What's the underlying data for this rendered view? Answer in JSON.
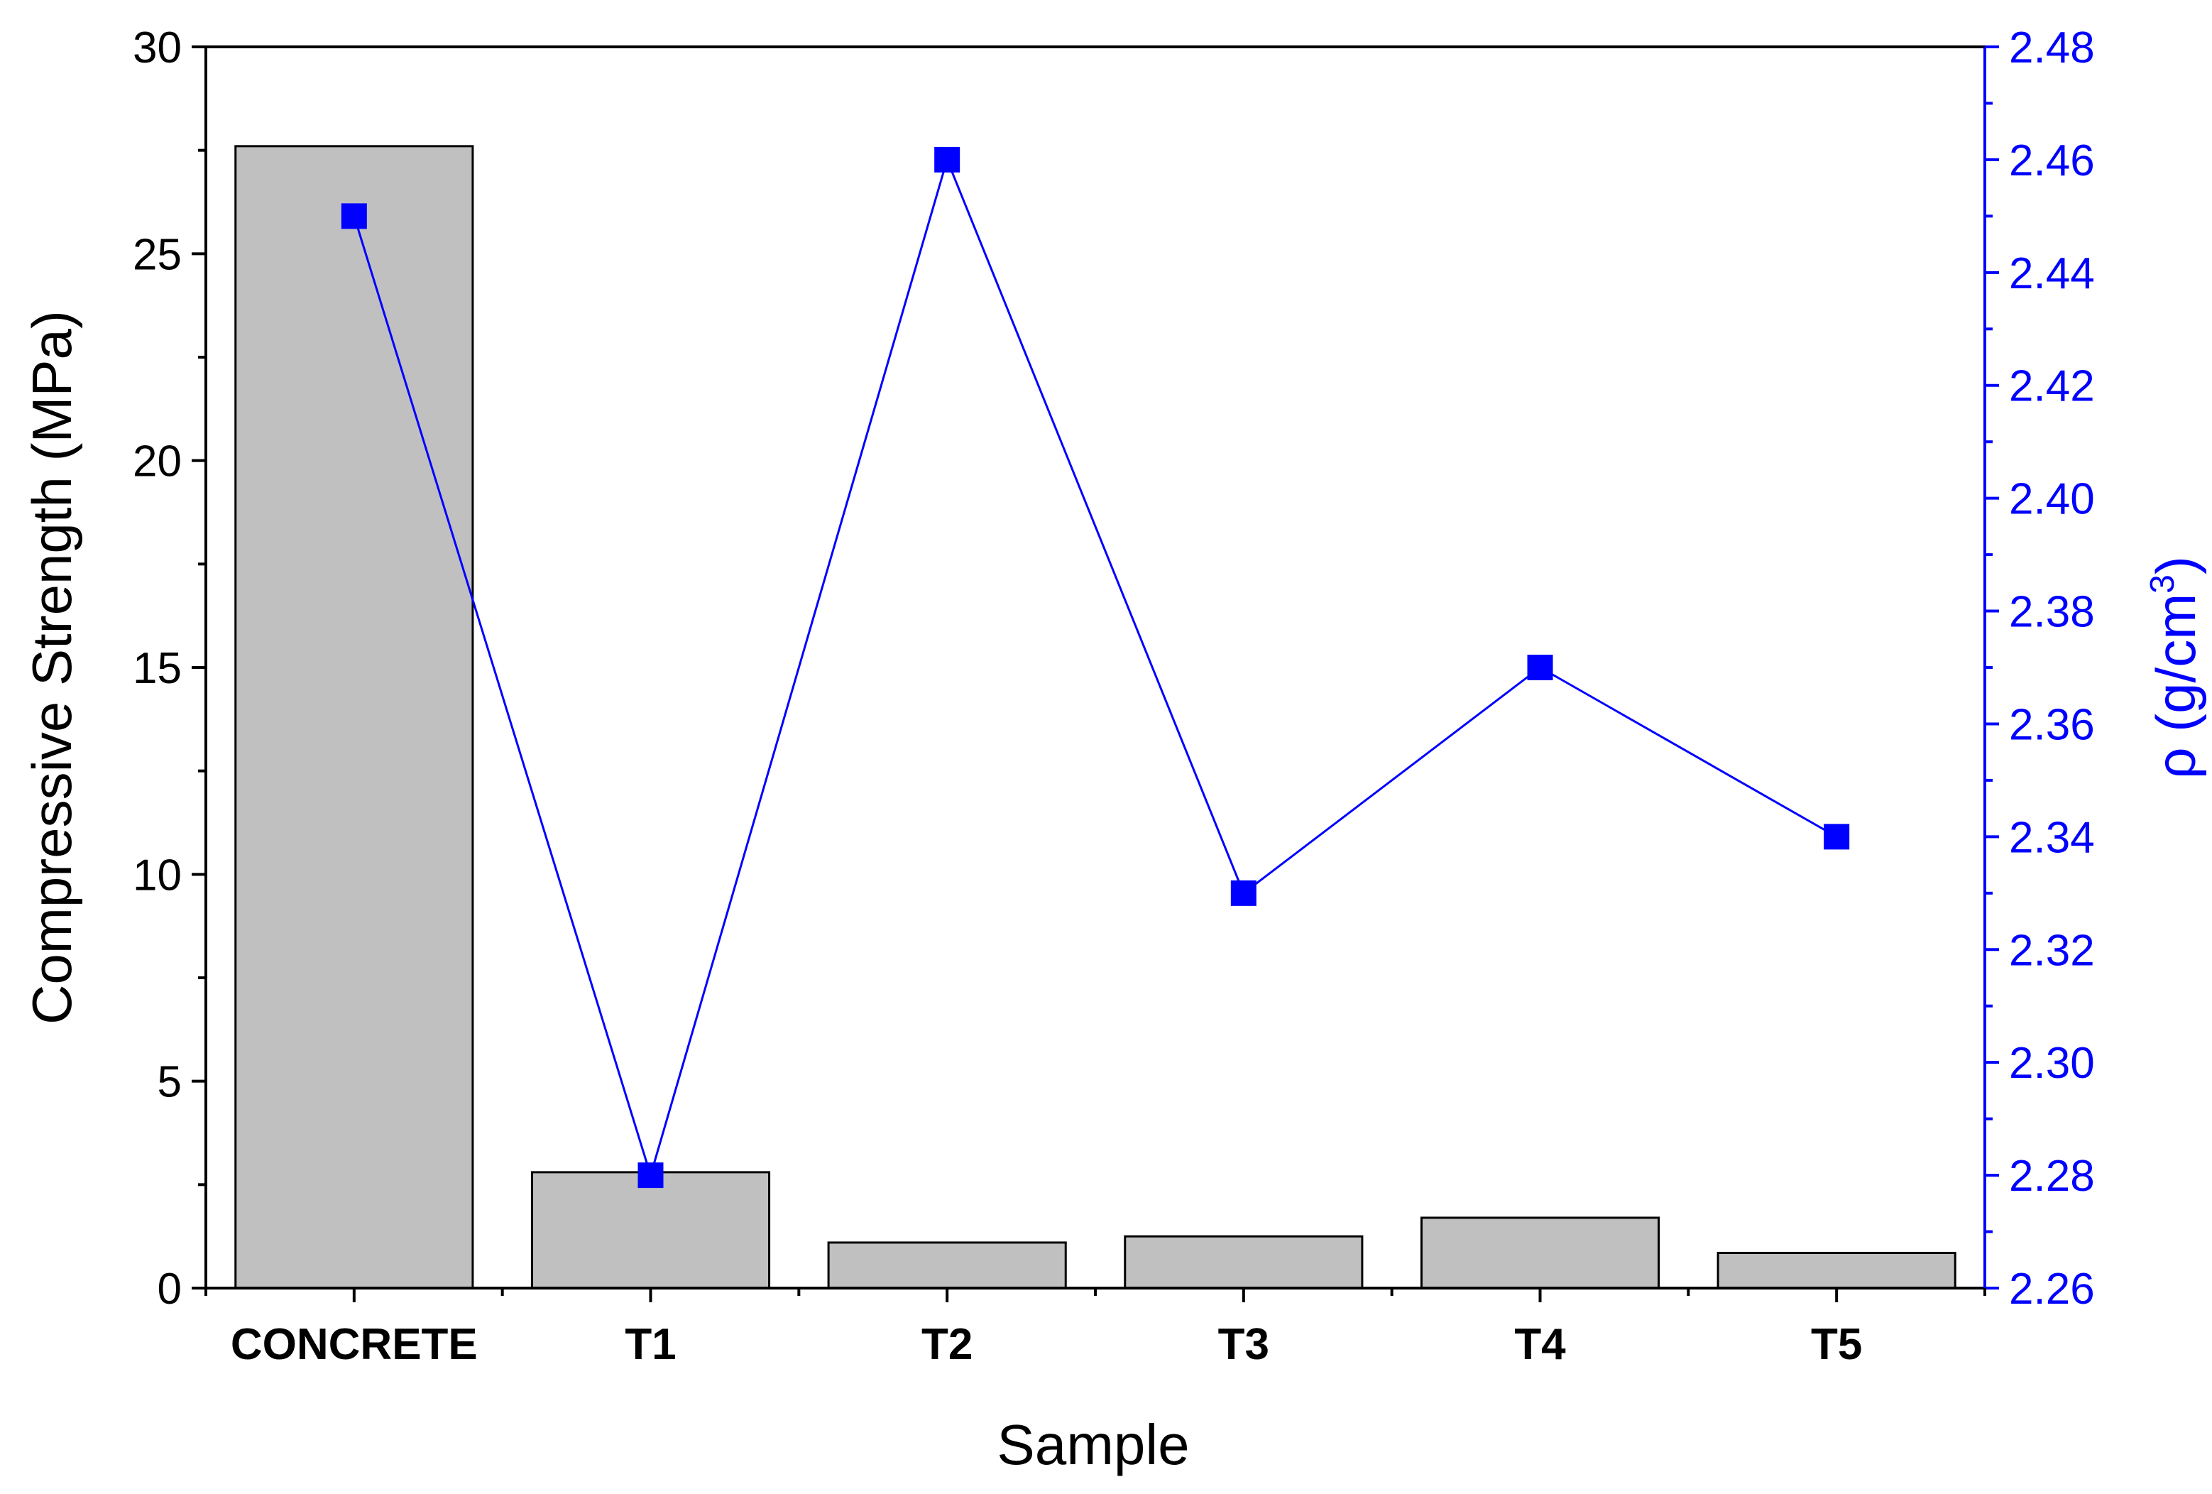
{
  "chart_data": {
    "type": "bar",
    "categories": [
      "CONCRETE",
      "T1",
      "T2",
      "T3",
      "T4",
      "T5"
    ],
    "series": [
      {
        "name": "",
        "type": "bar",
        "axis": "left",
        "values": [
          27.6,
          2.8,
          1.1,
          1.25,
          1.7,
          0.85
        ]
      },
      {
        "name": "",
        "type": "line",
        "axis": "right",
        "values": [
          2.45,
          2.28,
          2.46,
          2.33,
          2.37,
          2.34
        ]
      }
    ],
    "xlabel": "Sample",
    "ylabel": "Compressive Strength (MPa)",
    "ylabel_right_main": "ρ (g/cm",
    "ylabel_right_sup": "3",
    "ylabel_right_tail": ")",
    "ylim": [
      0,
      30
    ],
    "yticks": [
      "0",
      "5",
      "10",
      "15",
      "20",
      "25",
      "30"
    ],
    "ylim_right": [
      2.26,
      2.48
    ],
    "yticks_right": [
      "2.26",
      "2.28",
      "2.30",
      "2.32",
      "2.34",
      "2.36",
      "2.38",
      "2.40",
      "2.42",
      "2.44",
      "2.46",
      "2.48"
    ],
    "grid": false,
    "legend": "none",
    "colors": {
      "bar_fill": "#c0c0c0",
      "bar_stroke": "#000000",
      "line": "#0000ff",
      "right_axis": "#0000ff"
    }
  }
}
